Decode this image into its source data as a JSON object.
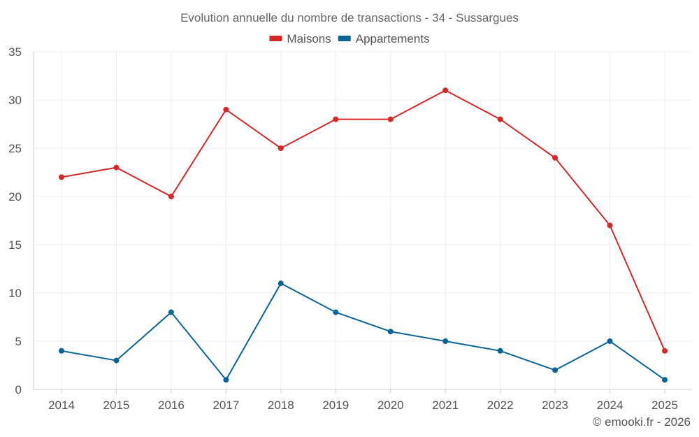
{
  "chart_data": {
    "type": "line",
    "title": "Evolution annuelle du nombre de transactions - 34 - Sussargues",
    "xlabel": "",
    "ylabel": "",
    "categories": [
      "2014",
      "2015",
      "2016",
      "2017",
      "2018",
      "2019",
      "2020",
      "2021",
      "2022",
      "2023",
      "2024",
      "2025"
    ],
    "ylim": [
      0,
      35
    ],
    "yticks": [
      0,
      5,
      10,
      15,
      20,
      25,
      30,
      35
    ],
    "grid": true,
    "legend_position": "top-center",
    "series": [
      {
        "name": "Maisons",
        "color": "#d62728",
        "values": [
          22,
          23,
          20,
          29,
          25,
          28,
          28,
          31,
          28,
          24,
          17,
          4
        ]
      },
      {
        "name": "Appartements",
        "color": "#0a6496",
        "values": [
          4,
          3,
          8,
          1,
          11,
          8,
          6,
          5,
          4,
          2,
          5,
          1
        ]
      }
    ]
  },
  "credit": "© emooki.fr - 2026"
}
